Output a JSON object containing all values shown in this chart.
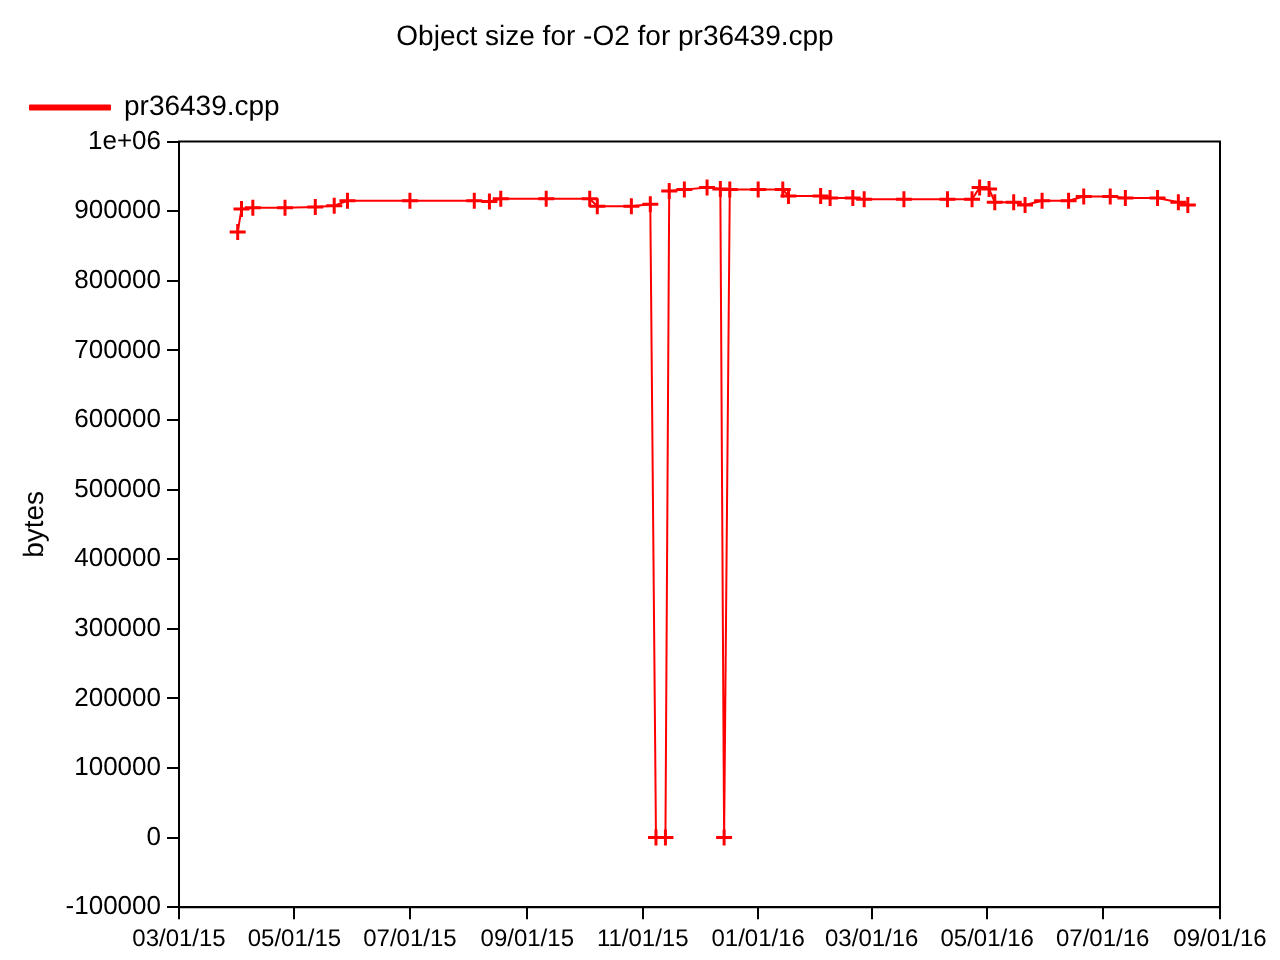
{
  "chart_data": {
    "type": "line",
    "title": "Object size for -O2 for pr36439.cpp",
    "ylabel": "bytes",
    "x": [
      "2015-04-01",
      "2015-04-03",
      "2015-04-09",
      "2015-04-26",
      "2015-05-12",
      "2015-05-22",
      "2015-05-29",
      "2015-07-01",
      "2015-08-04",
      "2015-08-12",
      "2015-08-18",
      "2015-09-11",
      "2015-10-04",
      "2015-10-08",
      "2015-10-26",
      "2015-11-05",
      "2015-11-08",
      "2015-11-13",
      "2015-11-15",
      "2015-11-23",
      "2015-12-05",
      "2015-12-12",
      "2015-12-14",
      "2015-12-17",
      "2016-01-01",
      "2016-01-14",
      "2016-01-17",
      "2016-02-03",
      "2016-02-08",
      "2016-02-20",
      "2016-02-26",
      "2016-03-18",
      "2016-04-10",
      "2016-04-23",
      "2016-04-27",
      "2016-05-02",
      "2016-05-05",
      "2016-05-15",
      "2016-05-21",
      "2016-05-30",
      "2016-06-13",
      "2016-06-21",
      "2016-07-05",
      "2016-07-13",
      "2016-07-30",
      "2016-08-10",
      "2016-08-15"
    ],
    "series": [
      {
        "name": "pr36439.cpp",
        "color": "#ff0000",
        "values": [
          870000,
          903000,
          905000,
          905000,
          906000,
          908000,
          915000,
          915000,
          915000,
          914000,
          918000,
          918000,
          918000,
          907000,
          907000,
          910000,
          0,
          0,
          929000,
          931000,
          934000,
          932000,
          0,
          931000,
          931000,
          931000,
          922000,
          922000,
          919000,
          919000,
          917000,
          917000,
          917000,
          917000,
          934000,
          932000,
          913000,
          913000,
          909000,
          915000,
          915000,
          921000,
          921000,
          919000,
          919000,
          913000,
          909000
        ]
      }
    ],
    "xlim": [
      "2015-03-01",
      "2016-09-01"
    ],
    "xticks": [
      {
        "value": "2015-03-01",
        "label": "03/01/15"
      },
      {
        "value": "2015-05-01",
        "label": "05/01/15"
      },
      {
        "value": "2015-07-01",
        "label": "07/01/15"
      },
      {
        "value": "2015-09-01",
        "label": "09/01/15"
      },
      {
        "value": "2015-11-01",
        "label": "11/01/15"
      },
      {
        "value": "2016-01-01",
        "label": "01/01/16"
      },
      {
        "value": "2016-03-01",
        "label": "03/01/16"
      },
      {
        "value": "2016-05-01",
        "label": "05/01/16"
      },
      {
        "value": "2016-07-01",
        "label": "07/01/16"
      },
      {
        "value": "2016-09-01",
        "label": "09/01/16"
      }
    ],
    "ylim": [
      -100000,
      1000000
    ],
    "yticks": [
      -100000,
      0,
      100000,
      200000,
      300000,
      400000,
      500000,
      600000,
      700000,
      800000,
      900000,
      {
        "value": 1000000,
        "label": "1e+06"
      }
    ],
    "legend": "top left",
    "marker": "cross",
    "line_style": "solid",
    "grid": false
  }
}
